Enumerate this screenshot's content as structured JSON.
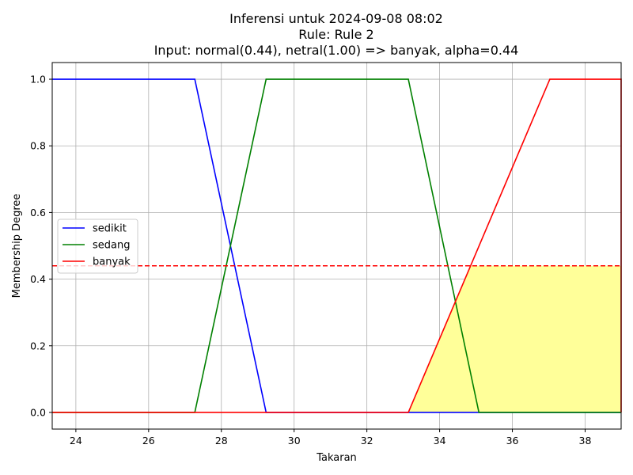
{
  "chart_data": {
    "type": "line",
    "title": [
      "Inferensi untuk 2024-09-08 08:02",
      "Rule: Rule 2",
      "Input: normal(0.44), netral(1.00) => banyak, alpha=0.44"
    ],
    "xlabel": "Takaran",
    "ylabel": "Membership Degree",
    "xlim": [
      23.35,
      38.99
    ],
    "ylim": [
      -0.05,
      1.05
    ],
    "xticks": [
      24,
      26,
      28,
      30,
      32,
      34,
      36,
      38
    ],
    "yticks": [
      0.0,
      0.2,
      0.4,
      0.6,
      0.8,
      1.0
    ],
    "ytick_labels": [
      "0.0",
      "0.2",
      "0.4",
      "0.6",
      "0.8",
      "1.0"
    ],
    "grid": true,
    "legend_position": "center-left",
    "series": [
      {
        "name": "sedikit",
        "color": "#0000ff",
        "x": [
          23.35,
          27.27,
          29.23,
          38.99
        ],
        "y": [
          1.0,
          1.0,
          0.0,
          0.0
        ]
      },
      {
        "name": "sedang",
        "color": "#008000",
        "x": [
          23.35,
          27.27,
          29.23,
          33.14,
          35.08,
          38.99
        ],
        "y": [
          0.0,
          0.0,
          1.0,
          1.0,
          0.0,
          0.0
        ]
      },
      {
        "name": "banyak",
        "color": "#ff0000",
        "x": [
          23.35,
          33.14,
          37.03,
          38.99,
          38.99
        ],
        "y": [
          0.0,
          0.0,
          1.0,
          1.0,
          0.0
        ]
      }
    ],
    "alpha_cut": {
      "value": 0.44,
      "color": "#ff0000",
      "style": "dashed"
    },
    "fill_region": {
      "color": "#ffff99",
      "x": [
        33.14,
        34.85,
        38.99,
        38.99
      ],
      "y": [
        0.0,
        0.44,
        0.44,
        0.0
      ]
    }
  }
}
